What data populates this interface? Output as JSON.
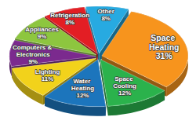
{
  "chart_data": {
    "type": "pie",
    "categories": [
      "Space Heating",
      "Space Cooling",
      "Water Heating",
      "Lighting",
      "Computers & Electronics",
      "Appliances",
      "Refrigeration",
      "Other"
    ],
    "values": [
      31,
      12,
      12,
      11,
      9,
      9,
      8,
      8
    ],
    "value_labels": [
      "31%",
      "12%",
      "12%",
      "11%",
      "9%",
      "9%",
      "8%",
      "8%"
    ],
    "colors": [
      "#f7941d",
      "#2bb24c",
      "#1c75bc",
      "#f2d21b",
      "#7b2a8e",
      "#8dc63f",
      "#e31e24",
      "#27aae1"
    ],
    "data_labels": true
  }
}
